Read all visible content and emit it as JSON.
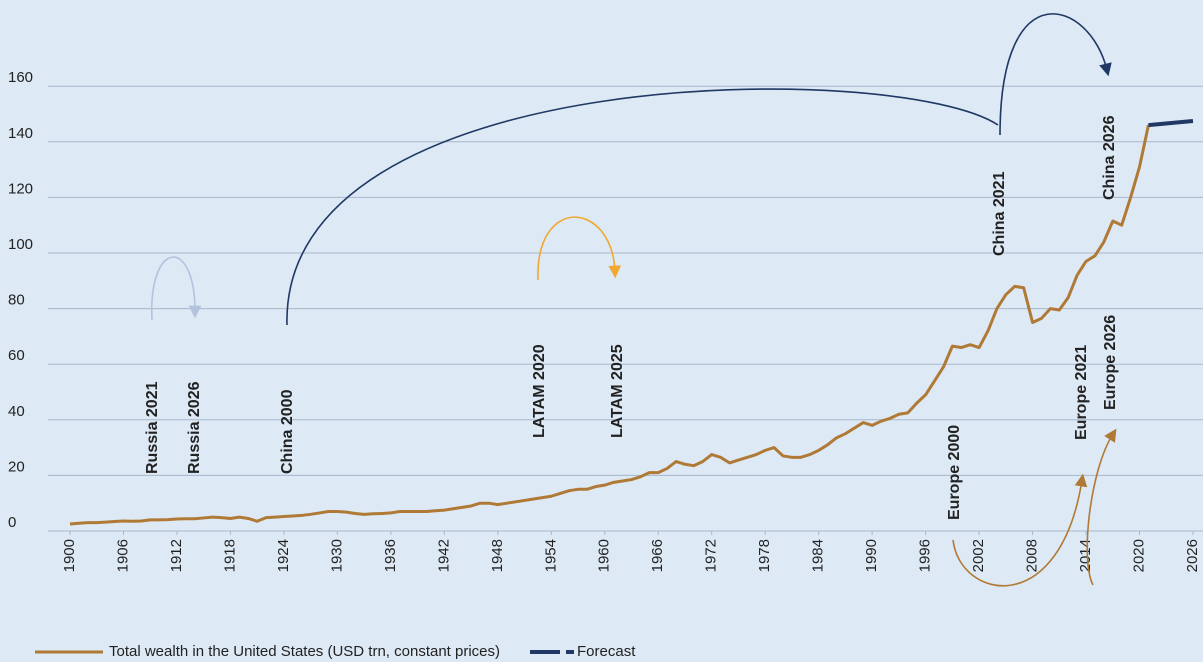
{
  "chart_data": {
    "type": "line",
    "xlim": [
      1900,
      2026
    ],
    "xticks": [
      1900,
      1906,
      1912,
      1918,
      1924,
      1930,
      1936,
      1942,
      1948,
      1954,
      1960,
      1966,
      1972,
      1978,
      1984,
      1990,
      1996,
      2002,
      2008,
      2014,
      2020,
      2026
    ],
    "ylim": [
      0,
      180
    ],
    "yticks": [
      0,
      20,
      40,
      60,
      80,
      100,
      120,
      140,
      160
    ],
    "grid": true,
    "legend": "bottom",
    "series": [
      {
        "name": "Total wealth in the United States (USD trn, constant prices)",
        "color": "#b07a36",
        "style": "solid",
        "x": [
          1900,
          1901,
          1902,
          1903,
          1904,
          1905,
          1906,
          1907,
          1908,
          1909,
          1910,
          1911,
          1912,
          1913,
          1914,
          1915,
          1916,
          1917,
          1918,
          1919,
          1920,
          1921,
          1922,
          1923,
          1924,
          1925,
          1926,
          1927,
          1928,
          1929,
          1930,
          1931,
          1932,
          1933,
          1934,
          1935,
          1936,
          1937,
          1938,
          1939,
          1940,
          1941,
          1942,
          1943,
          1944,
          1945,
          1946,
          1947,
          1948,
          1949,
          1950,
          1951,
          1952,
          1953,
          1954,
          1955,
          1956,
          1957,
          1958,
          1959,
          1960,
          1961,
          1962,
          1963,
          1964,
          1965,
          1966,
          1967,
          1968,
          1969,
          1970,
          1971,
          1972,
          1973,
          1974,
          1975,
          1976,
          1977,
          1978,
          1979,
          1980,
          1981,
          1982,
          1983,
          1984,
          1985,
          1986,
          1987,
          1988,
          1989,
          1990,
          1991,
          1992,
          1993,
          1994,
          1995,
          1996,
          1997,
          1998,
          1999,
          2000,
          2001,
          2002,
          2003,
          2004,
          2005,
          2006,
          2007,
          2008,
          2009,
          2010,
          2011,
          2012,
          2013,
          2014,
          2015,
          2016,
          2017,
          2018,
          2019,
          2020,
          2021
        ],
        "values": [
          2.5,
          2.8,
          3,
          3,
          3.2,
          3.4,
          3.6,
          3.5,
          3.6,
          4,
          4,
          4.1,
          4.3,
          4.4,
          4.4,
          4.7,
          5,
          4.8,
          4.5,
          5,
          4.5,
          3.5,
          4.8,
          5,
          5.2,
          5.4,
          5.6,
          6,
          6.5,
          7,
          7,
          6.8,
          6.3,
          6,
          6.2,
          6.3,
          6.5,
          7,
          7,
          7,
          7,
          7.3,
          7.5,
          8,
          8.5,
          9,
          10,
          10,
          9.5,
          10,
          10.5,
          11,
          11.5,
          12,
          12.5,
          13.5,
          14.5,
          15,
          15,
          16,
          16.5,
          17.5,
          18,
          18.5,
          19.5,
          21,
          21,
          22.5,
          25,
          24,
          23.5,
          25,
          27.5,
          26.5,
          24.5,
          25.5,
          26.5,
          27.5,
          29,
          30,
          27,
          26.5,
          26.5,
          27.5,
          29,
          31,
          33.5,
          35,
          37,
          39,
          38,
          39.5,
          40.5,
          42,
          42.5,
          46,
          49,
          54,
          59,
          66.5,
          66,
          67,
          66,
          72,
          80,
          85,
          88,
          87.5,
          75,
          76.5,
          80,
          79.5,
          84,
          92,
          97,
          99,
          104,
          111.5,
          110,
          120,
          131,
          146
        ]
      },
      {
        "name": "Forecast",
        "color": "#1f3864",
        "style": "dashed",
        "x": [
          2021,
          2026
        ],
        "values": [
          146,
          147.5
        ]
      }
    ],
    "annotations": [
      {
        "text": "Russia 2021",
        "color": "#b3c3dd"
      },
      {
        "text": "Russia 2026",
        "color": "#b3c3dd"
      },
      {
        "text": "China 2000",
        "color": "#1f3864"
      },
      {
        "text": "LATAM 2020",
        "color": "#f0a830"
      },
      {
        "text": "LATAM 2025",
        "color": "#f0a830"
      },
      {
        "text": "China 2021",
        "color": "#1f3864"
      },
      {
        "text": "China 2026",
        "color": "#1f3864"
      },
      {
        "text": "Europe 2000",
        "color": "#b07a36"
      },
      {
        "text": "Europe 2021",
        "color": "#b07a36"
      },
      {
        "text": "Europe 2026",
        "color": "#b07a36"
      }
    ]
  }
}
